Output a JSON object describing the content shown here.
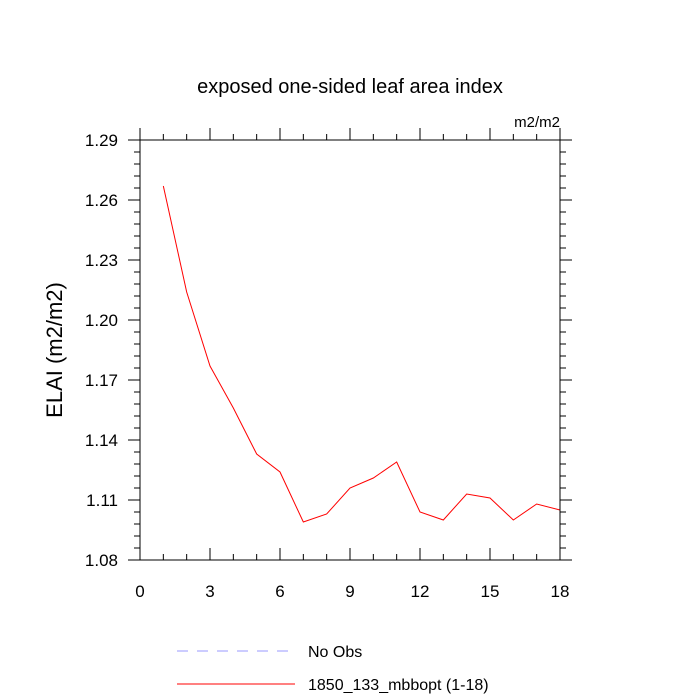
{
  "chart_data": {
    "type": "line",
    "title": "exposed one-sided leaf area index",
    "units_label": "m2/m2",
    "ylabel": "ELAI  (m2/m2)",
    "xlabel": "",
    "xlim": [
      0,
      18
    ],
    "ylim": [
      1.08,
      1.29
    ],
    "x_ticks": [
      0,
      3,
      6,
      9,
      12,
      15,
      18
    ],
    "x_tick_labels": [
      "0",
      "3",
      "6",
      "9",
      "12",
      "15",
      "18"
    ],
    "y_ticks": [
      1.08,
      1.11,
      1.14,
      1.17,
      1.2,
      1.23,
      1.26,
      1.29
    ],
    "y_tick_labels": [
      "1.08",
      "1.11",
      "1.14",
      "1.17",
      "1.20",
      "1.23",
      "1.26",
      "1.29"
    ],
    "grid": false,
    "series": [
      {
        "name": "1850_133_mbbopt (1-18)",
        "color": "#ff0000",
        "style": "solid",
        "x": [
          1,
          2,
          3,
          4,
          5,
          6,
          7,
          8,
          9,
          10,
          11,
          12,
          13,
          14,
          15,
          16,
          17,
          18
        ],
        "values": [
          1.267,
          1.214,
          1.177,
          1.156,
          1.133,
          1.124,
          1.099,
          1.103,
          1.116,
          1.121,
          1.129,
          1.104,
          1.1,
          1.113,
          1.111,
          1.1,
          1.108,
          1.105
        ]
      }
    ],
    "legend": [
      {
        "label": "No Obs",
        "color": "#9999ff",
        "style": "dashed"
      },
      {
        "label": "1850_133_mbbopt (1-18)",
        "color": "#ff0000",
        "style": "solid"
      }
    ],
    "legend_position": "bottom"
  }
}
